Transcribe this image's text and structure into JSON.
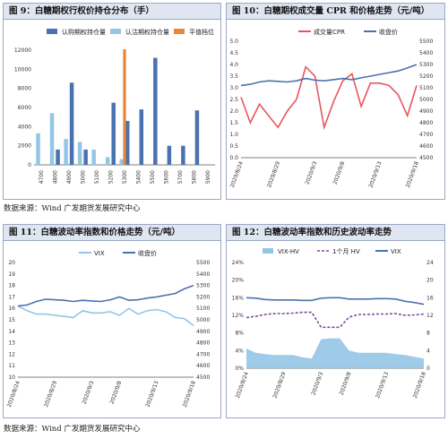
{
  "panels": {
    "p9": {
      "title": "图 9：白糖期权行权价持仓分布（手）",
      "chart_data": {
        "type": "bar",
        "categories": [
          "4700",
          "4800",
          "4900",
          "5000",
          "5100",
          "5200",
          "5300",
          "5400",
          "5500",
          "5600",
          "5700",
          "5800",
          "5900"
        ],
        "series": [
          {
            "name": "认购期权持仓量",
            "color": "#4a72b0",
            "values": [
              0,
              1600,
              8600,
              1600,
              0,
              6500,
              4600,
              5800,
              11200,
              2000,
              2000,
              5700,
              0
            ]
          },
          {
            "name": "认沽期权持仓量",
            "color": "#93c6e6",
            "values": [
              3300,
              5400,
              2700,
              2400,
              1600,
              800,
              600,
              0,
              0,
              0,
              0,
              0,
              0
            ]
          },
          {
            "name": "平值档位",
            "color": "#e8863a",
            "values": [
              0,
              0,
              0,
              0,
              0,
              0,
              12100,
              0,
              0,
              0,
              0,
              0,
              0
            ]
          }
        ],
        "ylim": [
          0,
          12000
        ],
        "yticks": [
          "0",
          "2000",
          "4000",
          "6000",
          "8000",
          "10000",
          "12000"
        ],
        "xtick_labels": [
          "4700",
          "4800",
          "4900",
          "5000",
          "5100",
          "5200",
          "5300",
          "5400",
          "5500",
          "5600",
          "5700",
          "5800",
          "5900"
        ],
        "legend_position": "top"
      }
    },
    "p10": {
      "title": "图 10：白糖期权成交量 CPR 和价格走势（元/吨）",
      "chart_data": {
        "type": "line",
        "x": [
          "2020/8/24",
          "2020/8/25",
          "2020/8/26",
          "2020/8/27",
          "2020/8/28",
          "2020/8/31",
          "2020/9/1",
          "2020/9/2",
          "2020/9/3",
          "2020/9/4",
          "2020/9/7",
          "2020/9/8",
          "2020/9/9",
          "2020/9/10",
          "2020/9/11",
          "2020/9/14",
          "2020/9/15",
          "2020/9/16",
          "2020/9/17",
          "2020/9/18"
        ],
        "series": [
          {
            "name": "成交量CPR",
            "color": "#e85560",
            "axis": "left",
            "values": [
              2.6,
              1.5,
              2.3,
              1.8,
              1.3,
              2.0,
              2.5,
              3.9,
              3.5,
              1.3,
              2.4,
              3.3,
              3.6,
              2.2,
              3.2,
              3.2,
              3.1,
              2.7,
              1.8,
              3.1
            ]
          },
          {
            "name": "收盘价",
            "color": "#4a72b0",
            "axis": "right",
            "values": [
              5120,
              5130,
              5150,
              5160,
              5155,
              5150,
              5160,
              5180,
              5165,
              5160,
              5170,
              5180,
              5170,
              5185,
              5200,
              5215,
              5230,
              5245,
              5270,
              5300
            ]
          }
        ],
        "y_left": {
          "lim": [
            0,
            5.0
          ],
          "ticks": [
            "0.0",
            "0.5",
            "1.0",
            "1.5",
            "2.0",
            "2.5",
            "3.0",
            "3.5",
            "4.0",
            "4.5",
            "5.0"
          ]
        },
        "y_right": {
          "lim": [
            4500,
            5500
          ],
          "ticks": [
            "4500",
            "4600",
            "4700",
            "4800",
            "4900",
            "5000",
            "5100",
            "5200",
            "5300",
            "5400",
            "5500"
          ]
        },
        "xtick_labels": [
          "2020/8/24",
          "2020/8/29",
          "2020/9/3",
          "2020/9/8",
          "2020/9/13",
          "2020/9/18"
        ],
        "legend_position": "top"
      }
    },
    "p11": {
      "title": "图 11：白糖波动率指数和价格走势（元/吨）",
      "chart_data": {
        "type": "line",
        "x": [
          "2020/8/24",
          "2020/8/25",
          "2020/8/26",
          "2020/8/27",
          "2020/8/28",
          "2020/8/31",
          "2020/9/1",
          "2020/9/2",
          "2020/9/3",
          "2020/9/4",
          "2020/9/7",
          "2020/9/8",
          "2020/9/9",
          "2020/9/10",
          "2020/9/11",
          "2020/9/14",
          "2020/9/15",
          "2020/9/16",
          "2020/9/17",
          "2020/9/18"
        ],
        "series": [
          {
            "name": "VIX",
            "color": "#93c6e6",
            "axis": "left",
            "values": [
              16.2,
              15.8,
              15.5,
              15.5,
              15.4,
              15.3,
              15.2,
              15.8,
              15.6,
              15.6,
              15.7,
              15.4,
              16.0,
              15.5,
              15.8,
              15.9,
              15.7,
              15.2,
              15.1,
              14.5
            ]
          },
          {
            "name": "收盘价",
            "color": "#4a72b0",
            "axis": "right",
            "values": [
              5120,
              5130,
              5160,
              5180,
              5175,
              5170,
              5160,
              5170,
              5165,
              5160,
              5175,
              5200,
              5170,
              5175,
              5190,
              5200,
              5215,
              5230,
              5270,
              5300
            ]
          }
        ],
        "y_left": {
          "lim": [
            10,
            20
          ],
          "ticks": [
            "10",
            "11",
            "12",
            "13",
            "14",
            "15",
            "16",
            "17",
            "18",
            "19",
            "20"
          ]
        },
        "y_right": {
          "lim": [
            4500,
            5500
          ],
          "ticks": [
            "4500",
            "4600",
            "4700",
            "4800",
            "4900",
            "5000",
            "5100",
            "5200",
            "5300",
            "5400",
            "5500"
          ]
        },
        "xtick_labels": [
          "2020/8/24",
          "2020/8/29",
          "2020/9/3",
          "2020/9/8",
          "2020/9/13",
          "2020/9/18"
        ],
        "legend_position": "top"
      }
    },
    "p12": {
      "title": "图 12：白糖波动率指数和历史波动率走势",
      "chart_data": {
        "type": "area",
        "x": [
          "2020/8/24",
          "2020/8/25",
          "2020/8/26",
          "2020/8/27",
          "2020/8/28",
          "2020/8/31",
          "2020/9/1",
          "2020/9/2",
          "2020/9/3",
          "2020/9/4",
          "2020/9/7",
          "2020/9/8",
          "2020/9/9",
          "2020/9/10",
          "2020/9/11",
          "2020/9/14",
          "2020/9/15",
          "2020/9/16",
          "2020/9/17",
          "2020/9/18"
        ],
        "series": [
          {
            "name": "VIX-HV",
            "color": "#93c6e6",
            "axis": "right",
            "kind": "area",
            "values": [
              4.5,
              3.5,
              3.2,
              3.0,
              3.0,
              3.0,
              2.5,
              2.2,
              6.6,
              6.8,
              6.8,
              4.0,
              3.5,
              3.5,
              3.5,
              3.5,
              3.2,
              3.0,
              2.6,
              2.2
            ]
          },
          {
            "name": "1个月 HV",
            "color": "#7b4a9a",
            "axis": "left",
            "kind": "dashed",
            "values": [
              11.5,
              11.8,
              12.2,
              12.4,
              12.4,
              12.5,
              12.7,
              12.7,
              9.3,
              9.3,
              9.3,
              11.6,
              12.2,
              12.2,
              12.3,
              12.3,
              12.4,
              12.0,
              12.1,
              12.3
            ]
          },
          {
            "name": "VIX",
            "color": "#4a72b0",
            "axis": "left",
            "kind": "line",
            "values": [
              16.0,
              15.9,
              15.6,
              15.5,
              15.5,
              15.5,
              15.4,
              15.4,
              15.9,
              16.0,
              16.0,
              15.7,
              15.7,
              15.7,
              15.8,
              15.8,
              15.7,
              15.2,
              14.9,
              14.5
            ]
          }
        ],
        "y_left": {
          "lim": [
            0,
            24
          ],
          "ticks": [
            "0%",
            "4%",
            "8%",
            "12%",
            "16%",
            "20%",
            "24%"
          ]
        },
        "y_right": {
          "lim": [
            0,
            24
          ],
          "ticks": [
            "0",
            "4",
            "8",
            "12",
            "16",
            "20",
            "24"
          ]
        },
        "xtick_labels": [
          "2020/8/24",
          "2020/8/29",
          "2020/9/3",
          "2020/9/8",
          "2020/9/13",
          "2020/9/18"
        ],
        "legend_position": "top"
      }
    }
  },
  "sources": {
    "top": "数据来源：Wind 广发期货发展研究中心",
    "bottom": "数据来源：Wind 广发期货发展研究中心"
  }
}
